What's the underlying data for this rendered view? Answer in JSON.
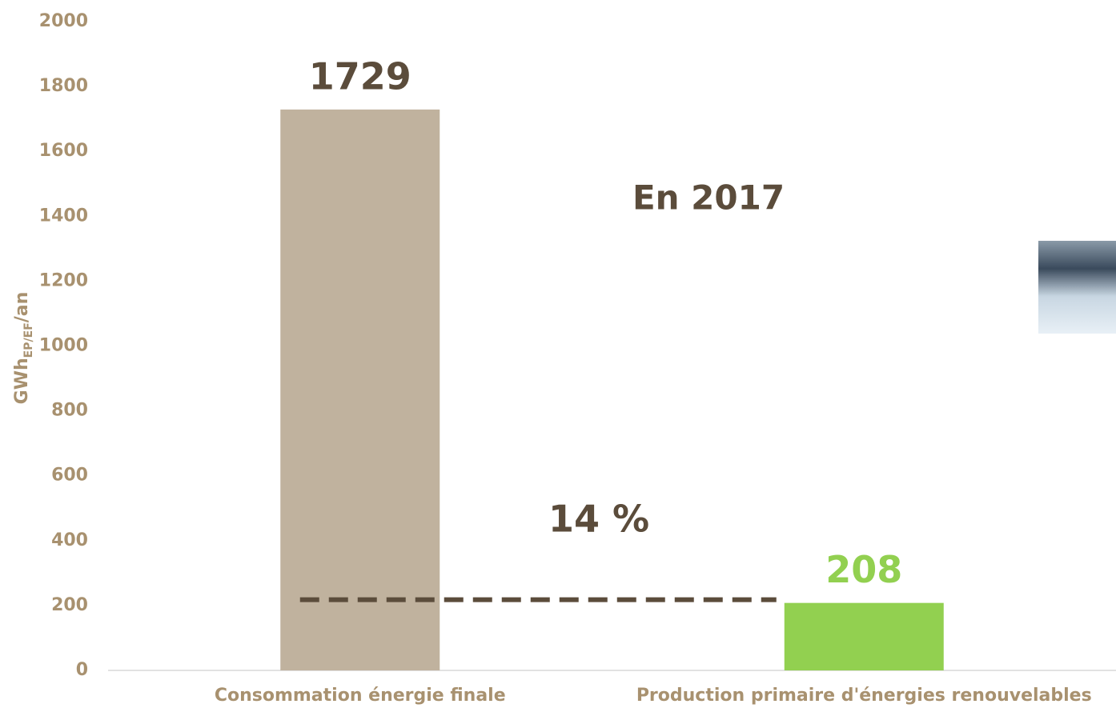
{
  "chart_data": {
    "type": "bar",
    "ylabel": "GWh",
    "ylabel_sub": "EP/EF",
    "ylabel_suffix": "/an",
    "categories": [
      "Consommation énergie finale",
      "Production primaire d'énergies renouvelables"
    ],
    "values": [
      1729,
      208
    ],
    "colors": [
      "#c0b29e",
      "#92d050"
    ],
    "value_label_colors": [
      "#5b4c3b",
      "#92d050"
    ],
    "ylim": [
      0,
      2000
    ],
    "yticks": [
      0,
      200,
      400,
      600,
      800,
      1000,
      1200,
      1400,
      1600,
      1800,
      2000
    ],
    "annotations": [
      "En 2017",
      "14 %"
    ],
    "reference_line_color": "#5b4c3b"
  }
}
